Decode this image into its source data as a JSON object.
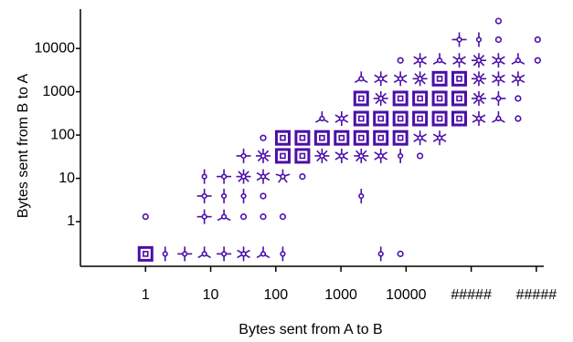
{
  "chart_data": {
    "type": "scatter",
    "x_label": "Bytes sent from A to B",
    "y_label": "Bytes sent from B to A",
    "log_x": true,
    "log_y": true,
    "color": "#4b0fa8",
    "xlim": [
      0.1,
      1300000
    ],
    "ylim": [
      0.093,
      81000
    ],
    "xticks": [
      1,
      10,
      100,
      1000,
      10000,
      {
        "value": 100000,
        "label": "#####"
      },
      {
        "value": 1000000,
        "label": "#####"
      }
    ],
    "yticks": [
      1,
      10,
      100,
      1000,
      10000
    ],
    "x": [
      1,
      2,
      4,
      8,
      16,
      32,
      64,
      128,
      4096,
      8192,
      1,
      8,
      16,
      32,
      64,
      128,
      8,
      16,
      32,
      64,
      2048,
      8,
      16,
      32,
      64,
      128,
      256,
      32,
      64,
      128,
      256,
      512,
      1024,
      2048,
      4096,
      8192,
      16384,
      64,
      128,
      256,
      512,
      1024,
      2048,
      4096,
      8192,
      16384,
      32768,
      512,
      1024,
      2048,
      4096,
      8192,
      16384,
      32768,
      65536,
      131072,
      262144,
      524288,
      2048,
      4096,
      8192,
      16384,
      32768,
      65536,
      131072,
      262144,
      524288,
      2048,
      4096,
      8192,
      16384,
      32768,
      65536,
      131072,
      262144,
      524288,
      8192,
      16384,
      32768,
      65536,
      131072,
      262144,
      524288,
      1048576,
      65536,
      131072,
      262144,
      1048576,
      262144
    ],
    "y": [
      0.18,
      0.18,
      0.18,
      0.18,
      0.18,
      0.18,
      0.18,
      0.18,
      0.18,
      0.18,
      1.3,
      1.3,
      1.3,
      1.3,
      1.3,
      1.3,
      3.9,
      3.9,
      3.9,
      3.9,
      3.9,
      11,
      11,
      11,
      11,
      11,
      11,
      33,
      33,
      33,
      33,
      33,
      33,
      33,
      33,
      33,
      33,
      86,
      86,
      86,
      86,
      86,
      86,
      86,
      86,
      86,
      86,
      240,
      240,
      240,
      240,
      240,
      240,
      240,
      240,
      240,
      240,
      240,
      700,
      700,
      700,
      700,
      700,
      700,
      700,
      700,
      700,
      2000,
      2000,
      2000,
      2000,
      2000,
      2000,
      2000,
      2000,
      2000,
      5300,
      5300,
      5300,
      5300,
      5300,
      5300,
      5300,
      5300,
      16000,
      16000,
      16000,
      16000,
      43000
    ],
    "counts": [
      12,
      2,
      4,
      3,
      4,
      6,
      3,
      2,
      2,
      1,
      1,
      4,
      3,
      1,
      1,
      1,
      4,
      2,
      2,
      1,
      2,
      2,
      4,
      8,
      6,
      5,
      1,
      4,
      8,
      12,
      12,
      8,
      6,
      8,
      6,
      2,
      1,
      1,
      12,
      12,
      12,
      12,
      12,
      12,
      12,
      6,
      6,
      3,
      6,
      12,
      12,
      12,
      12,
      12,
      12,
      6,
      3,
      1,
      12,
      8,
      12,
      12,
      12,
      12,
      8,
      4,
      1,
      3,
      6,
      6,
      8,
      12,
      12,
      8,
      6,
      6,
      1,
      6,
      3,
      6,
      8,
      6,
      3,
      1,
      4,
      2,
      1,
      1,
      1
    ]
  }
}
